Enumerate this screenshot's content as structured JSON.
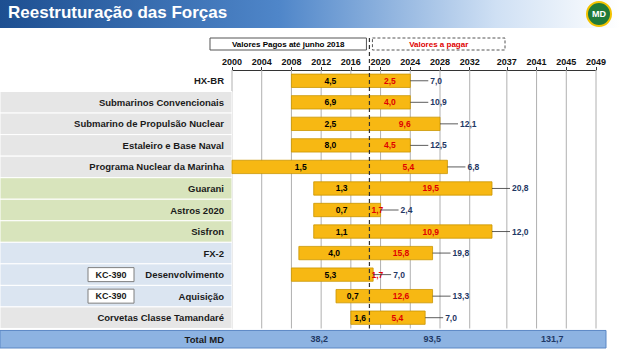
{
  "chart_data": {
    "type": "bar",
    "orientation": "horizontal",
    "title": "Reestruturação das Forças",
    "logo_text": "MD",
    "annotations": [
      "Valores Pagos até junho 2018",
      "Valores a pagar"
    ],
    "categories": [
      "HX-BR",
      "Submarinos Convencionais",
      "Submarino de Propulsão Nuclear",
      "Estaleiro e Base Naval",
      "Programa Nuclear da Marinha",
      "Guarani",
      "Astros 2020",
      "Sisfron",
      "FX-2",
      "Desenvolvimento",
      "Aquisição",
      "Corvetas Classe Tamandaré"
    ],
    "row_tags": [
      null,
      null,
      null,
      null,
      null,
      null,
      null,
      null,
      null,
      "KC-390",
      "KC-390",
      null
    ],
    "start": [
      2008,
      2008,
      2008,
      2008,
      2000,
      2011,
      2011,
      2011,
      2009,
      2008,
      2014,
      2016
    ],
    "end": [
      2024,
      2024,
      2028,
      2024,
      2029,
      2035,
      2020,
      2035,
      2027,
      2019,
      2027,
      2026
    ],
    "paid_until": 2018.5,
    "paid_values": [
      4.5,
      6.9,
      2.5,
      8.0,
      1.5,
      1.3,
      0.7,
      1.1,
      4.0,
      5.3,
      0.7,
      1.6
    ],
    "paid_labels": [
      "4,5",
      "6,9",
      "2,5",
      "8,0",
      "1,5",
      "1,3",
      "0,7",
      "1,1",
      "4,0",
      "5,3",
      "0,7",
      "1,6"
    ],
    "to_pay_values": [
      2.5,
      4.0,
      9.6,
      4.5,
      5.4,
      19.5,
      1.7,
      10.9,
      15.8,
      1.7,
      12.6,
      5.4
    ],
    "to_pay_labels": [
      "2,5",
      "4,0",
      "9,6",
      "4,5",
      "5,4",
      "19,5",
      "1,7",
      "10,9",
      "15,8",
      "1,7",
      "12,6",
      "5,4"
    ],
    "total_values": [
      7.0,
      10.9,
      12.1,
      12.5,
      6.8,
      20.8,
      2.4,
      12.0,
      19.8,
      7.0,
      13.3,
      7.0
    ],
    "total_labels": [
      "7,0",
      "10,9",
      "12,1",
      "12,5",
      "6,8",
      "20,8",
      "2,4",
      "12,0",
      "19,8",
      "7,0",
      "13,3",
      "7,0"
    ],
    "total_row": {
      "label": "Total MD",
      "values": [
        38.2,
        93.5,
        131.7
      ],
      "value_labels": [
        "38,2",
        "93,5",
        "131,7"
      ]
    },
    "color": "#f7b813",
    "data_labels": true,
    "grid": true,
    "xlim": [
      2000,
      2049
    ],
    "xticks": [
      2000,
      2004,
      2008,
      2012,
      2016,
      2020,
      2024,
      2028,
      2032,
      2037,
      2041,
      2045,
      2049
    ]
  }
}
